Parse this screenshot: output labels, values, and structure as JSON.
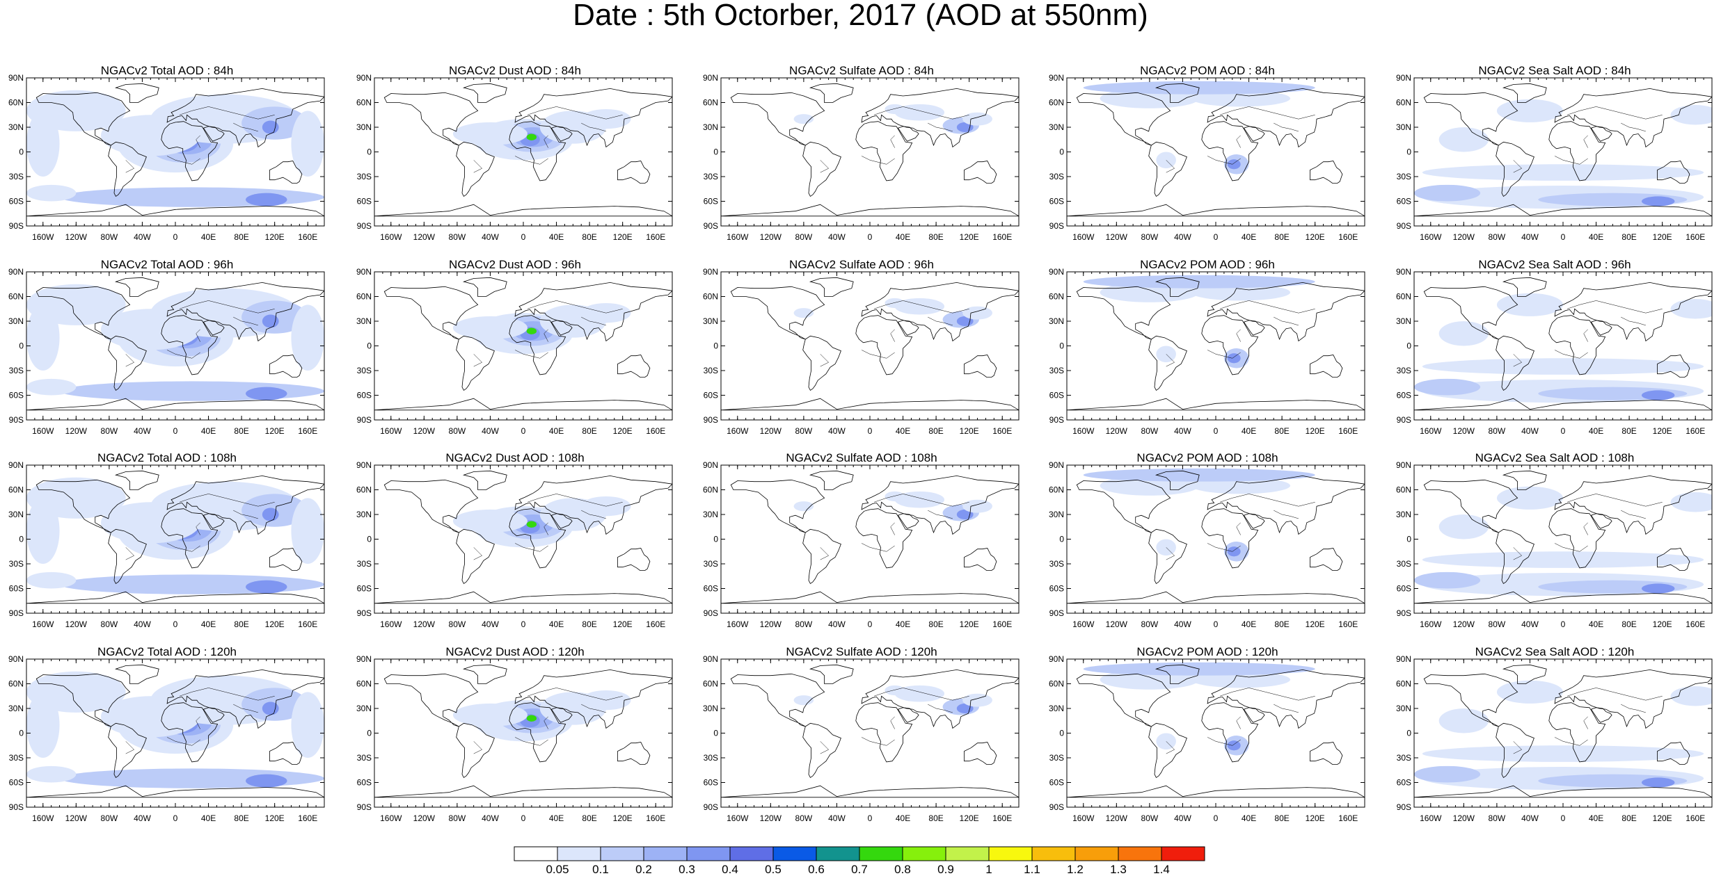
{
  "title": "Date : 5th Octorber, 2017 (AOD at 550nm)",
  "rows": [
    {
      "panels": [
        {
          "title": "NGACv2 Total AOD : 84h",
          "species": "total"
        },
        {
          "title": "NGACv2 Dust AOD : 84h",
          "species": "dust"
        },
        {
          "title": "NGACv2 Sulfate AOD : 84h",
          "species": "sulfate"
        },
        {
          "title": "NGACv2 POM AOD : 84h",
          "species": "pom"
        },
        {
          "title": "NGACv2 Sea Salt AOD : 84h",
          "species": "seasalt"
        }
      ]
    },
    {
      "panels": [
        {
          "title": "NGACv2 Total AOD : 96h",
          "species": "total"
        },
        {
          "title": "NGACv2 Dust AOD : 96h",
          "species": "dust"
        },
        {
          "title": "NGACv2 Sulfate AOD : 96h",
          "species": "sulfate"
        },
        {
          "title": "NGACv2 POM AOD : 96h",
          "species": "pom"
        },
        {
          "title": "NGACv2 Sea Salt AOD : 96h",
          "species": "seasalt"
        }
      ]
    },
    {
      "panels": [
        {
          "title": "NGACv2 Total AOD : 108h",
          "species": "total"
        },
        {
          "title": "NGACv2 Dust AOD : 108h",
          "species": "dust"
        },
        {
          "title": "NGACv2 Sulfate AOD : 108h",
          "species": "sulfate"
        },
        {
          "title": "NGACv2 POM AOD : 108h",
          "species": "pom"
        },
        {
          "title": "NGACv2 Sea Salt AOD : 108h",
          "species": "seasalt"
        }
      ]
    },
    {
      "panels": [
        {
          "title": "NGACv2 Total AOD : 120h",
          "species": "total"
        },
        {
          "title": "NGACv2 Dust AOD : 120h",
          "species": "dust"
        },
        {
          "title": "NGACv2 Sulfate AOD : 120h",
          "species": "sulfate"
        },
        {
          "title": "NGACv2 POM AOD : 120h",
          "species": "pom"
        },
        {
          "title": "NGACv2 Sea Salt  AOD : 120h",
          "species": "seasalt"
        }
      ]
    }
  ],
  "lat_ticks": [
    "90N",
    "60N",
    "30N",
    "0",
    "30S",
    "60S",
    "90S"
  ],
  "lon_ticks": [
    "160W",
    "120W",
    "80W",
    "40W",
    "0",
    "40E",
    "80E",
    "120E",
    "160E"
  ],
  "colorbar": {
    "labels": [
      "0.05",
      "0.1",
      "0.2",
      "0.3",
      "0.4",
      "0.5",
      "0.6",
      "0.7",
      "0.8",
      "0.9",
      "1",
      "1.1",
      "1.2",
      "1.3",
      "1.4"
    ],
    "colors": [
      "#ffffff",
      "#dce6fb",
      "#bcccf8",
      "#9db2f5",
      "#7f96f1",
      "#5f6ee6",
      "#0a5ae6",
      "#12938e",
      "#34d80e",
      "#86f00c",
      "#c2f24a",
      "#f8f80e",
      "#f8be0c",
      "#f89e0a",
      "#f8740c",
      "#f01e0c"
    ]
  }
}
